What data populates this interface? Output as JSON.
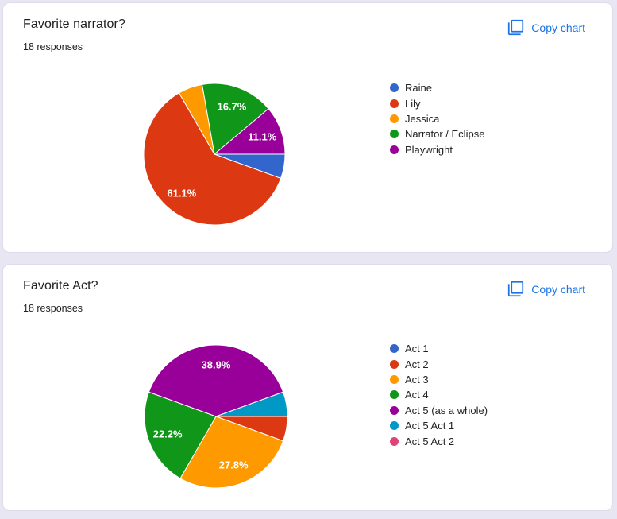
{
  "colors": {
    "page_background": "#e9e6f4",
    "card_background": "#ffffff",
    "card_border": "#dedbeb",
    "accent_blue": "#1a73e8",
    "title_text": "#202124",
    "legend_text": "#222222",
    "slice_label_text": "#ffffff"
  },
  "cards": [
    {
      "title": "Favorite narrator?",
      "responses_label": "18 responses",
      "copy_chart_label": "Copy chart",
      "copy_icon": "copy-icon"
    },
    {
      "title": "Favorite Act?",
      "responses_label": "18 responses",
      "copy_chart_label": "Copy chart",
      "copy_icon": "copy-icon"
    }
  ],
  "chart_data": [
    {
      "type": "pie",
      "title": "Favorite narrator?",
      "subtitle": "18 responses",
      "total_responses": 18,
      "start_angle_deg": 90,
      "direction": "clockwise",
      "legend_position": "right",
      "slices": [
        {
          "label": "Raine",
          "count": 1,
          "pct": 5.6,
          "pct_label": "",
          "color": "#3366cc"
        },
        {
          "label": "Lily",
          "count": 11,
          "pct": 61.1,
          "pct_label": "61.1%",
          "color": "#dc3912"
        },
        {
          "label": "Jessica",
          "count": 1,
          "pct": 5.6,
          "pct_label": "",
          "color": "#ff9900"
        },
        {
          "label": "Narrator / Eclipse",
          "count": 3,
          "pct": 16.7,
          "pct_label": "16.7%",
          "color": "#109618"
        },
        {
          "label": "Playwright",
          "count": 2,
          "pct": 11.1,
          "pct_label": "11.1%",
          "color": "#990099"
        }
      ]
    },
    {
      "type": "pie",
      "title": "Favorite Act?",
      "subtitle": "18 responses",
      "total_responses": 18,
      "start_angle_deg": 90,
      "direction": "clockwise",
      "legend_position": "right",
      "slices": [
        {
          "label": "Act 1",
          "count": 0,
          "pct": 0,
          "pct_label": "",
          "color": "#3366cc"
        },
        {
          "label": "Act 2",
          "count": 1,
          "pct": 5.6,
          "pct_label": "",
          "color": "#dc3912"
        },
        {
          "label": "Act 3",
          "count": 5,
          "pct": 27.8,
          "pct_label": "27.8%",
          "color": "#ff9900"
        },
        {
          "label": "Act 4",
          "count": 4,
          "pct": 22.2,
          "pct_label": "22.2%",
          "color": "#109618"
        },
        {
          "label": "Act 5 (as a whole)",
          "count": 7,
          "pct": 38.9,
          "pct_label": "38.9%",
          "color": "#990099"
        },
        {
          "label": "Act 5 Act 1",
          "count": 1,
          "pct": 5.6,
          "pct_label": "",
          "color": "#0099c6"
        },
        {
          "label": "Act 5 Act 2",
          "count": 0,
          "pct": 0,
          "pct_label": "",
          "color": "#dd4477"
        }
      ]
    }
  ]
}
